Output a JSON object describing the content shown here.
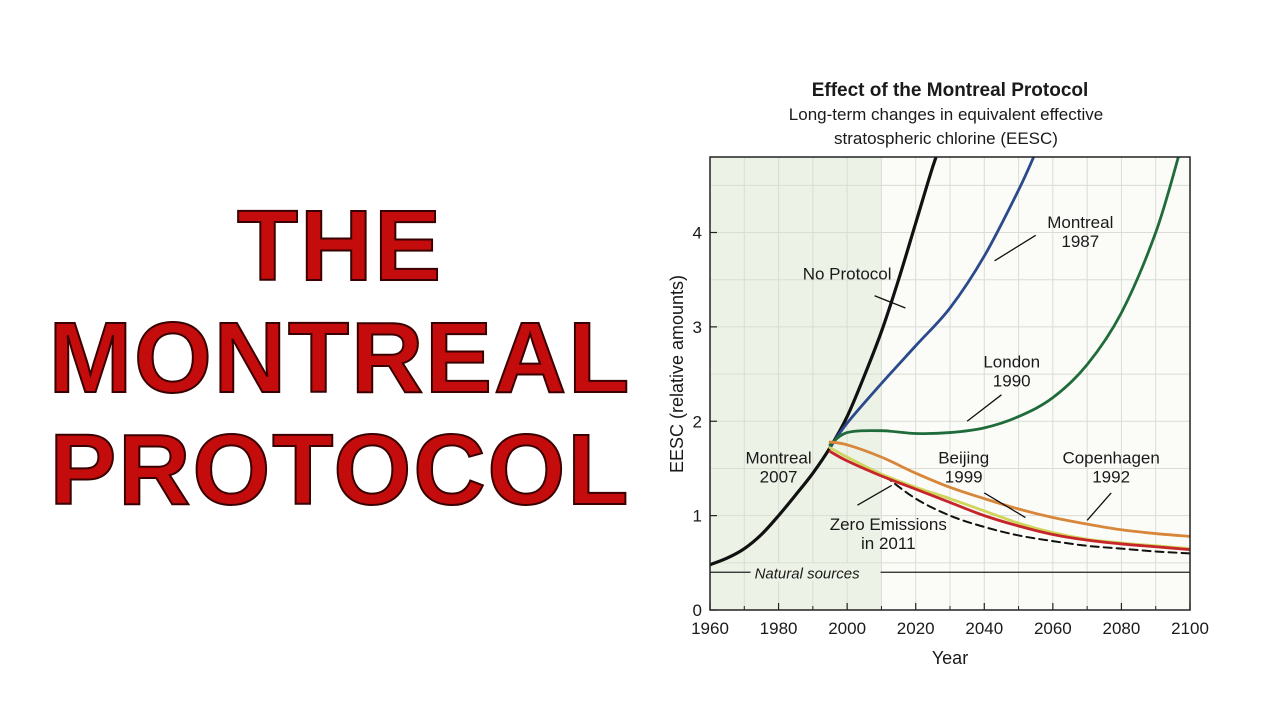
{
  "headline": [
    "THE",
    "MONTREAL",
    "PROTOCOL"
  ],
  "chart_data": {
    "type": "line",
    "title": "Effect of the Montreal Protocol",
    "subtitle": [
      "Long-term changes in equivalent effective",
      "stratospheric chlorine (EESC)"
    ],
    "xlabel": "Year",
    "ylabel": "EESC (relative amounts)",
    "xlim": [
      1960,
      2100
    ],
    "ylim": [
      0,
      4.8
    ],
    "xticks": [
      1960,
      1980,
      2000,
      2020,
      2040,
      2060,
      2080,
      2100
    ],
    "yticks": [
      0,
      1,
      2,
      3,
      4
    ],
    "grid": true,
    "shaded_period": [
      1960,
      2010
    ],
    "colors": {
      "no_protocol": "#111111",
      "montreal_1987": "#2b4a8c",
      "london_1990": "#1f6b3a",
      "copenhagen_1992": "#d8863a",
      "beijing_1999": "#cfd45a",
      "montreal_2007": "#c6262a",
      "zero_emissions": "#111111",
      "shade": "#edf2e6"
    },
    "natural_sources": {
      "label": "Natural sources",
      "value": 0.4
    },
    "series": [
      {
        "key": "no_protocol",
        "name": "No Protocol",
        "dashed": false,
        "x": [
          1960,
          1965,
          1970,
          1975,
          1980,
          1985,
          1990,
          1995,
          2000,
          2005,
          2010,
          2015,
          2020,
          2025,
          2028
        ],
        "y": [
          0.48,
          0.55,
          0.65,
          0.8,
          1.0,
          1.22,
          1.45,
          1.72,
          2.05,
          2.48,
          2.95,
          3.5,
          4.1,
          4.7,
          5.0
        ]
      },
      {
        "key": "montreal_1987",
        "name": "Montreal 1987",
        "dashed": false,
        "x": [
          1995,
          2000,
          2010,
          2020,
          2030,
          2040,
          2050,
          2055
        ],
        "y": [
          1.72,
          1.98,
          2.4,
          2.8,
          3.2,
          3.75,
          4.45,
          4.85
        ]
      },
      {
        "key": "london_1990",
        "name": "London 1990",
        "dashed": false,
        "x": [
          1995,
          2000,
          2010,
          2020,
          2030,
          2040,
          2050,
          2060,
          2070,
          2080,
          2090,
          2097
        ],
        "y": [
          1.75,
          1.88,
          1.9,
          1.87,
          1.88,
          1.93,
          2.05,
          2.25,
          2.6,
          3.15,
          4.0,
          4.85
        ]
      },
      {
        "key": "copenhagen_1992",
        "name": "Copenhagen 1992",
        "dashed": false,
        "x": [
          1995,
          2000,
          2010,
          2020,
          2030,
          2040,
          2050,
          2060,
          2070,
          2080,
          2090,
          2100
        ],
        "y": [
          1.78,
          1.75,
          1.62,
          1.45,
          1.3,
          1.18,
          1.07,
          0.98,
          0.91,
          0.85,
          0.81,
          0.78
        ]
      },
      {
        "key": "beijing_1999",
        "name": "Beijing 1999",
        "dashed": false,
        "x": [
          1995,
          2000,
          2010,
          2020,
          2030,
          2040,
          2050,
          2060,
          2070,
          2080,
          2090,
          2100
        ],
        "y": [
          1.72,
          1.62,
          1.44,
          1.3,
          1.18,
          1.05,
          0.92,
          0.82,
          0.75,
          0.71,
          0.68,
          0.65
        ]
      },
      {
        "key": "montreal_2007",
        "name": "Montreal 2007",
        "dashed": false,
        "x": [
          1995,
          2000,
          2010,
          2020,
          2030,
          2040,
          2050,
          2060,
          2070,
          2080,
          2090,
          2100
        ],
        "y": [
          1.68,
          1.58,
          1.42,
          1.28,
          1.14,
          1.0,
          0.89,
          0.8,
          0.74,
          0.7,
          0.67,
          0.64
        ]
      },
      {
        "key": "zero_emissions",
        "name": "Zero Emissions in 2011",
        "dashed": true,
        "x": [
          2011,
          2020,
          2030,
          2040,
          2050,
          2060,
          2070,
          2080,
          2090,
          2100
        ],
        "y": [
          1.42,
          1.18,
          1.0,
          0.88,
          0.79,
          0.73,
          0.68,
          0.65,
          0.62,
          0.6
        ]
      }
    ],
    "annotations": [
      {
        "key": "no_protocol",
        "lines": [
          "No Protocol"
        ],
        "text_at": [
          2000,
          3.5
        ],
        "anchor": "middle",
        "leader": [
          [
            2008,
            3.33
          ],
          [
            2017,
            3.2
          ]
        ]
      },
      {
        "key": "montreal_1987",
        "lines": [
          "Montreal",
          "1987"
        ],
        "text_at": [
          2068,
          4.05
        ],
        "anchor": "middle",
        "leader": [
          [
            2055,
            3.97
          ],
          [
            2043,
            3.7
          ]
        ]
      },
      {
        "key": "london_1990",
        "lines": [
          "London",
          "1990"
        ],
        "text_at": [
          2048,
          2.57
        ],
        "anchor": "middle",
        "leader": [
          [
            2045,
            2.28
          ],
          [
            2035,
            2.0
          ]
        ]
      },
      {
        "key": "montreal_2007",
        "lines": [
          "Montreal",
          "2007"
        ],
        "text_at": [
          1980,
          1.55
        ],
        "anchor": "middle",
        "leader": []
      },
      {
        "key": "beijing_1999",
        "lines": [
          "Beijing",
          "1999"
        ],
        "text_at": [
          2034,
          1.55
        ],
        "anchor": "middle",
        "leader": [
          [
            2040,
            1.24
          ],
          [
            2052,
            0.98
          ]
        ]
      },
      {
        "key": "copenhagen_1992",
        "lines": [
          "Copenhagen",
          "1992"
        ],
        "text_at": [
          2077,
          1.55
        ],
        "anchor": "middle",
        "leader": [
          [
            2077,
            1.24
          ],
          [
            2070,
            0.95
          ]
        ]
      },
      {
        "key": "zero_emissions",
        "lines": [
          "Zero Emissions",
          "in 2011"
        ],
        "text_at": [
          2012,
          0.85
        ],
        "anchor": "middle",
        "leader": [
          [
            2003,
            1.11
          ],
          [
            2013,
            1.32
          ]
        ]
      }
    ]
  }
}
